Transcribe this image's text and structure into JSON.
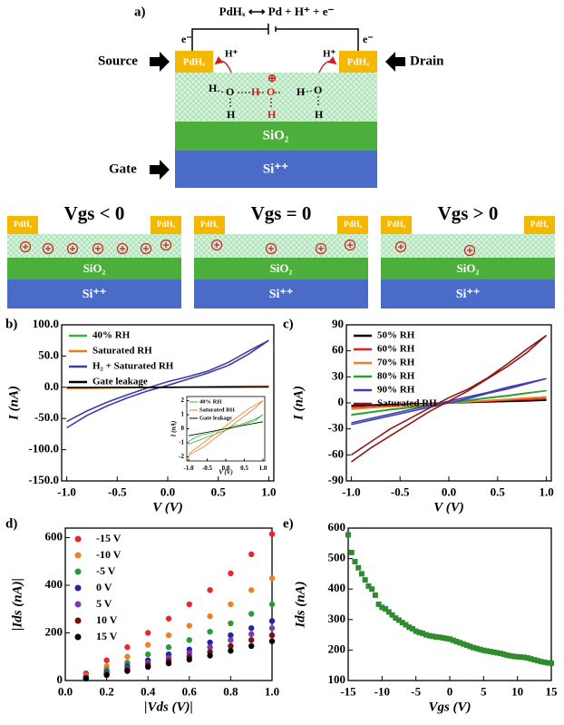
{
  "diagram": {
    "panel_label": "a)",
    "reaction": "PdHₓ ⟷ Pd + H⁺ + e⁻",
    "electrons": [
      "e⁻",
      "e⁻"
    ],
    "source": "Source",
    "drain": "Drain",
    "gate": "Gate",
    "contacts": [
      "PdHₓ",
      "PdHₓ"
    ],
    "protons": [
      "H⁺",
      "H⁺"
    ],
    "water_atoms": [
      "H",
      "O",
      "H",
      "H",
      "O",
      "H",
      "H",
      "O",
      "H"
    ],
    "hydronium_charge": "⊕",
    "oxide": "SiO₂",
    "substrate": "Si⁺⁺",
    "panels": [
      {
        "title": "Vgs < 0",
        "contacts": [
          "PdHₓ",
          "PdHₓ"
        ],
        "oxide": "SiO₂",
        "substrate": "Si⁺⁺"
      },
      {
        "title": "Vgs = 0",
        "contacts": [
          "PdHₓ",
          "PdHₓ"
        ],
        "oxide": "SiO₂",
        "substrate": "Si⁺⁺"
      },
      {
        "title": "Vgs > 0",
        "contacts": [
          "PdHₓ",
          "PdHₓ"
        ],
        "oxide": "SiO₂",
        "substrate": "Si⁺⁺"
      }
    ]
  },
  "chart_data": [
    {
      "type": "line",
      "panel_label": "b)",
      "xlabel": "V (V)",
      "ylabel": "I (nA)",
      "legend": "upper left",
      "xlim": [
        -1.05,
        1.05
      ],
      "ylim": [
        -150,
        100
      ],
      "xticks": [
        {
          "value": -1,
          "label": "-1.0"
        },
        {
          "value": -0.5,
          "label": "-0.5"
        },
        {
          "value": 0,
          "label": "0.0"
        },
        {
          "value": 0.5,
          "label": "0.5"
        },
        {
          "value": 1,
          "label": "1.0"
        }
      ],
      "yticks": [
        {
          "value": -150,
          "label": "-150.0"
        },
        {
          "value": -100,
          "label": "-100.0"
        },
        {
          "value": -50,
          "label": "-50.0"
        },
        {
          "value": 0,
          "label": "0.0"
        },
        {
          "value": 50,
          "label": "50.0"
        },
        {
          "value": 100,
          "label": "100.0"
        }
      ],
      "x": [
        -1,
        -0.8,
        -0.6,
        -0.4,
        -0.2,
        0,
        0.2,
        0.4,
        0.6,
        0.8,
        1,
        0.8,
        0.6,
        0.4,
        0.2,
        0,
        -0.2,
        -0.4,
        -0.6,
        -0.8,
        -1
      ],
      "series": [
        {
          "name": "40% RH",
          "color": "#3cb43c",
          "values": [
            -0.9,
            -0.6,
            -0.4,
            -0.3,
            -0.1,
            0,
            0.2,
            0.3,
            0.5,
            0.7,
            1.0,
            0.6,
            0.4,
            0.2,
            0.1,
            -0.1,
            -0.3,
            -0.5,
            -0.7,
            -0.9,
            -1.1
          ]
        },
        {
          "name": "Saturated RH",
          "color": "#f07820",
          "values": [
            -1.8,
            -1.4,
            -1.0,
            -0.6,
            -0.2,
            0.2,
            0.6,
            1.0,
            1.4,
            1.7,
            2.0,
            1.5,
            1.1,
            0.7,
            0.3,
            -0.1,
            -0.5,
            -0.9,
            -1.3,
            -1.6,
            -1.9
          ]
        },
        {
          "name": "H₂ + Saturated RH",
          "color": "#3c3ca8",
          "values": [
            -65,
            -45,
            -30,
            -17,
            -6,
            3,
            13,
            23,
            35,
            53,
            75,
            58,
            40,
            26,
            17,
            9,
            -1,
            -12,
            -24,
            -38,
            -55
          ]
        },
        {
          "name": "Gate leakage",
          "color": "#000000",
          "values": [
            -0.5,
            -0.4,
            -0.3,
            -0.2,
            -0.1,
            0,
            0.1,
            0.2,
            0.3,
            0.4,
            0.5,
            0.4,
            0.3,
            0.2,
            0.1,
            0,
            -0.1,
            -0.2,
            -0.3,
            -0.4,
            -0.5
          ]
        }
      ]
    },
    {
      "type": "line",
      "xlabel": "V (V)",
      "ylabel": "I (nA)",
      "legend": "upper left",
      "xlim": [
        -1.05,
        1.05
      ],
      "ylim": [
        -2.3,
        2.3
      ],
      "xticks": [
        {
          "value": -1,
          "label": "-1.0"
        },
        {
          "value": -0.5,
          "label": "-0.5"
        },
        {
          "value": 0,
          "label": "0.0"
        },
        {
          "value": 0.5,
          "label": "0.5"
        },
        {
          "value": 1,
          "label": "1.0"
        }
      ],
      "yticks": [
        -2,
        -1,
        0,
        1,
        2
      ],
      "x": [
        -1,
        -0.8,
        -0.6,
        -0.4,
        -0.2,
        0,
        0.2,
        0.4,
        0.6,
        0.8,
        1,
        0.8,
        0.6,
        0.4,
        0.2,
        0,
        -0.2,
        -0.4,
        -0.6,
        -0.8,
        -1
      ],
      "series": [
        {
          "name": "40% RH",
          "color": "#3cb43c",
          "values": [
            -0.9,
            -0.6,
            -0.4,
            -0.3,
            -0.1,
            0,
            0.2,
            0.3,
            0.5,
            0.7,
            1.0,
            0.6,
            0.4,
            0.2,
            0.1,
            -0.1,
            -0.3,
            -0.5,
            -0.7,
            -0.9,
            -1.1
          ]
        },
        {
          "name": "Saturated RH",
          "color": "#f07820",
          "values": [
            -1.8,
            -1.4,
            -1.0,
            -0.6,
            -0.2,
            0.2,
            0.6,
            1.0,
            1.4,
            1.7,
            2.0,
            1.5,
            1.1,
            0.7,
            0.3,
            -0.1,
            -0.5,
            -0.9,
            -1.3,
            -1.6,
            -1.9
          ]
        },
        {
          "name": "Gate leakage",
          "color": "#000000",
          "values": [
            -0.5,
            -0.4,
            -0.3,
            -0.2,
            -0.1,
            0,
            0.1,
            0.2,
            0.3,
            0.4,
            0.5,
            0.4,
            0.3,
            0.2,
            0.1,
            0,
            -0.1,
            -0.2,
            -0.3,
            -0.4,
            -0.5
          ]
        }
      ]
    },
    {
      "type": "line",
      "panel_label": "c)",
      "xlabel": "V (V)",
      "ylabel": "I (nA)",
      "legend": "upper left",
      "xlim": [
        -1.05,
        1.05
      ],
      "ylim": [
        -90,
        90
      ],
      "xticks": [
        {
          "value": -1,
          "label": "-1.0"
        },
        {
          "value": -0.5,
          "label": "-0.5"
        },
        {
          "value": 0,
          "label": "0.0"
        },
        {
          "value": 0.5,
          "label": "0.5"
        },
        {
          "value": 1,
          "label": "1.0"
        }
      ],
      "yticks": [
        -90,
        -60,
        -30,
        0,
        30,
        60,
        90
      ],
      "x": [
        -1,
        -0.8,
        -0.6,
        -0.4,
        -0.2,
        0,
        0.2,
        0.4,
        0.6,
        0.8,
        1,
        0.8,
        0.6,
        0.4,
        0.2,
        0,
        -0.2,
        -0.4,
        -0.6,
        -0.8,
        -1
      ],
      "series": [
        {
          "name": "50% RH",
          "color": "#000000",
          "values": [
            -3,
            -2.4,
            -1.8,
            -1.2,
            -0.6,
            0,
            0.6,
            1.2,
            1.8,
            2.4,
            3,
            2.2,
            1.6,
            1,
            0.4,
            -0.2,
            -0.8,
            -1.4,
            -2,
            -2.6,
            -3.2
          ]
        },
        {
          "name": "60% RH",
          "color": "#e02020",
          "values": [
            -5,
            -4,
            -3,
            -2,
            -1,
            0,
            1,
            2,
            3,
            4,
            5,
            4,
            3,
            2,
            1,
            0,
            -1,
            -2,
            -3,
            -4,
            -5
          ]
        },
        {
          "name": "70% RH",
          "color": "#f08020",
          "values": [
            -7,
            -5.6,
            -4.2,
            -2.8,
            -1.4,
            0,
            1.4,
            2.8,
            4.2,
            5.6,
            7,
            5.4,
            4,
            2.6,
            1.2,
            -0.2,
            -1.6,
            -3,
            -4.4,
            -5.8,
            -7.2
          ]
        },
        {
          "name": "80% RH",
          "color": "#30a030",
          "values": [
            -14,
            -11,
            -8,
            -5.5,
            -2.5,
            0,
            2.5,
            5.5,
            8,
            11,
            14,
            11.5,
            8.5,
            6,
            3,
            0.5,
            -2,
            -5,
            -7.5,
            -10.5,
            -13.5
          ]
        },
        {
          "name": "90% RH",
          "color": "#4040b0",
          "values": [
            -25,
            -20,
            -15,
            -10,
            -5,
            0,
            5,
            11,
            16,
            22,
            28,
            23,
            18,
            12,
            7,
            2,
            -3,
            -8,
            -13,
            -18,
            -23
          ]
        },
        {
          "name": "Saturated RH",
          "color": "#8b1a1a",
          "values": [
            -68,
            -52,
            -38,
            -24,
            -10,
            2,
            14,
            28,
            42,
            58,
            78,
            62,
            45,
            29,
            16,
            6,
            -6,
            -18,
            -30,
            -45,
            -60
          ]
        }
      ]
    },
    {
      "type": "scatter",
      "marker": "circle",
      "panel_label": "d)",
      "xlabel": "|Vds (V)|",
      "ylabel": "|Ids (nA)|",
      "legend": "upper left",
      "xlim": [
        0,
        1
      ],
      "ylim": [
        0,
        640
      ],
      "xticks": [
        {
          "value": 0,
          "label": "0.0"
        },
        {
          "value": 0.2,
          "label": "0.2"
        },
        {
          "value": 0.4,
          "label": "0.4"
        },
        {
          "value": 0.6,
          "label": "0.6"
        },
        {
          "value": 0.8,
          "label": "0.8"
        },
        {
          "value": 1,
          "label": "1.0"
        }
      ],
      "yticks": [
        0,
        200,
        400,
        600
      ],
      "x": [
        0.1,
        0.2,
        0.3,
        0.4,
        0.5,
        0.6,
        0.7,
        0.8,
        0.9,
        1.0
      ],
      "series": [
        {
          "name": "-15 V",
          "color": "#e8282a",
          "values": [
            30,
            85,
            140,
            200,
            260,
            320,
            380,
            450,
            530,
            615
          ]
        },
        {
          "name": "-10 V",
          "color": "#f08028",
          "values": [
            20,
            60,
            100,
            150,
            190,
            230,
            270,
            320,
            380,
            430
          ]
        },
        {
          "name": "-5 V",
          "color": "#2a9a3a",
          "values": [
            15,
            45,
            75,
            110,
            140,
            170,
            205,
            240,
            280,
            320
          ]
        },
        {
          "name": "0 V",
          "color": "#2424a8",
          "values": [
            12,
            35,
            60,
            85,
            110,
            130,
            160,
            190,
            220,
            250
          ]
        },
        {
          "name": "5 V",
          "color": "#7a3ab0",
          "values": [
            10,
            30,
            52,
            75,
            95,
            115,
            140,
            170,
            195,
            220
          ]
        },
        {
          "name": "10 V",
          "color": "#7a1010",
          "values": [
            9,
            26,
            45,
            65,
            82,
            100,
            120,
            145,
            170,
            190
          ]
        },
        {
          "name": "15 V",
          "color": "#000000",
          "values": [
            8,
            23,
            40,
            57,
            72,
            88,
            105,
            125,
            145,
            165
          ]
        }
      ]
    },
    {
      "type": "scatter",
      "marker": "square",
      "panel_label": "e)",
      "xlabel": "Vgs (V)",
      "ylabel": "Ids (nA)",
      "color": "#2e8b2e",
      "xlim": [
        -15,
        15
      ],
      "ylim": [
        100,
        600
      ],
      "xticks": [
        -15,
        -10,
        -5,
        0,
        5,
        10,
        15
      ],
      "yticks": [
        100,
        200,
        300,
        400,
        500,
        600
      ],
      "x": [
        -15,
        -14.5,
        -14,
        -13.5,
        -13,
        -12.5,
        -12,
        -11.5,
        -11,
        -10.5,
        -10,
        -9.5,
        -9,
        -8.5,
        -8,
        -7.5,
        -7,
        -6.5,
        -6,
        -5.5,
        -5,
        -4.5,
        -4,
        -3.5,
        -3,
        -2.5,
        -2,
        -1.5,
        -1,
        -0.5,
        0,
        0.5,
        1,
        1.5,
        2,
        2.5,
        3,
        3.5,
        4,
        4.5,
        5,
        5.5,
        6,
        6.5,
        7,
        7.5,
        8,
        8.5,
        9,
        9.5,
        10,
        10.5,
        11,
        11.5,
        12,
        12.5,
        13,
        13.5,
        14,
        14.5,
        15
      ],
      "values": [
        578,
        520,
        490,
        470,
        450,
        430,
        410,
        400,
        380,
        350,
        340,
        335,
        325,
        315,
        305,
        298,
        290,
        283,
        275,
        270,
        262,
        258,
        255,
        250,
        247,
        245,
        243,
        242,
        240,
        238,
        236,
        232,
        228,
        224,
        220,
        216,
        212,
        208,
        205,
        202,
        199,
        197,
        195,
        193,
        191,
        189,
        186,
        183,
        181,
        179,
        178,
        177,
        176,
        174,
        171,
        168,
        165,
        162,
        160,
        158,
        157
      ]
    }
  ]
}
